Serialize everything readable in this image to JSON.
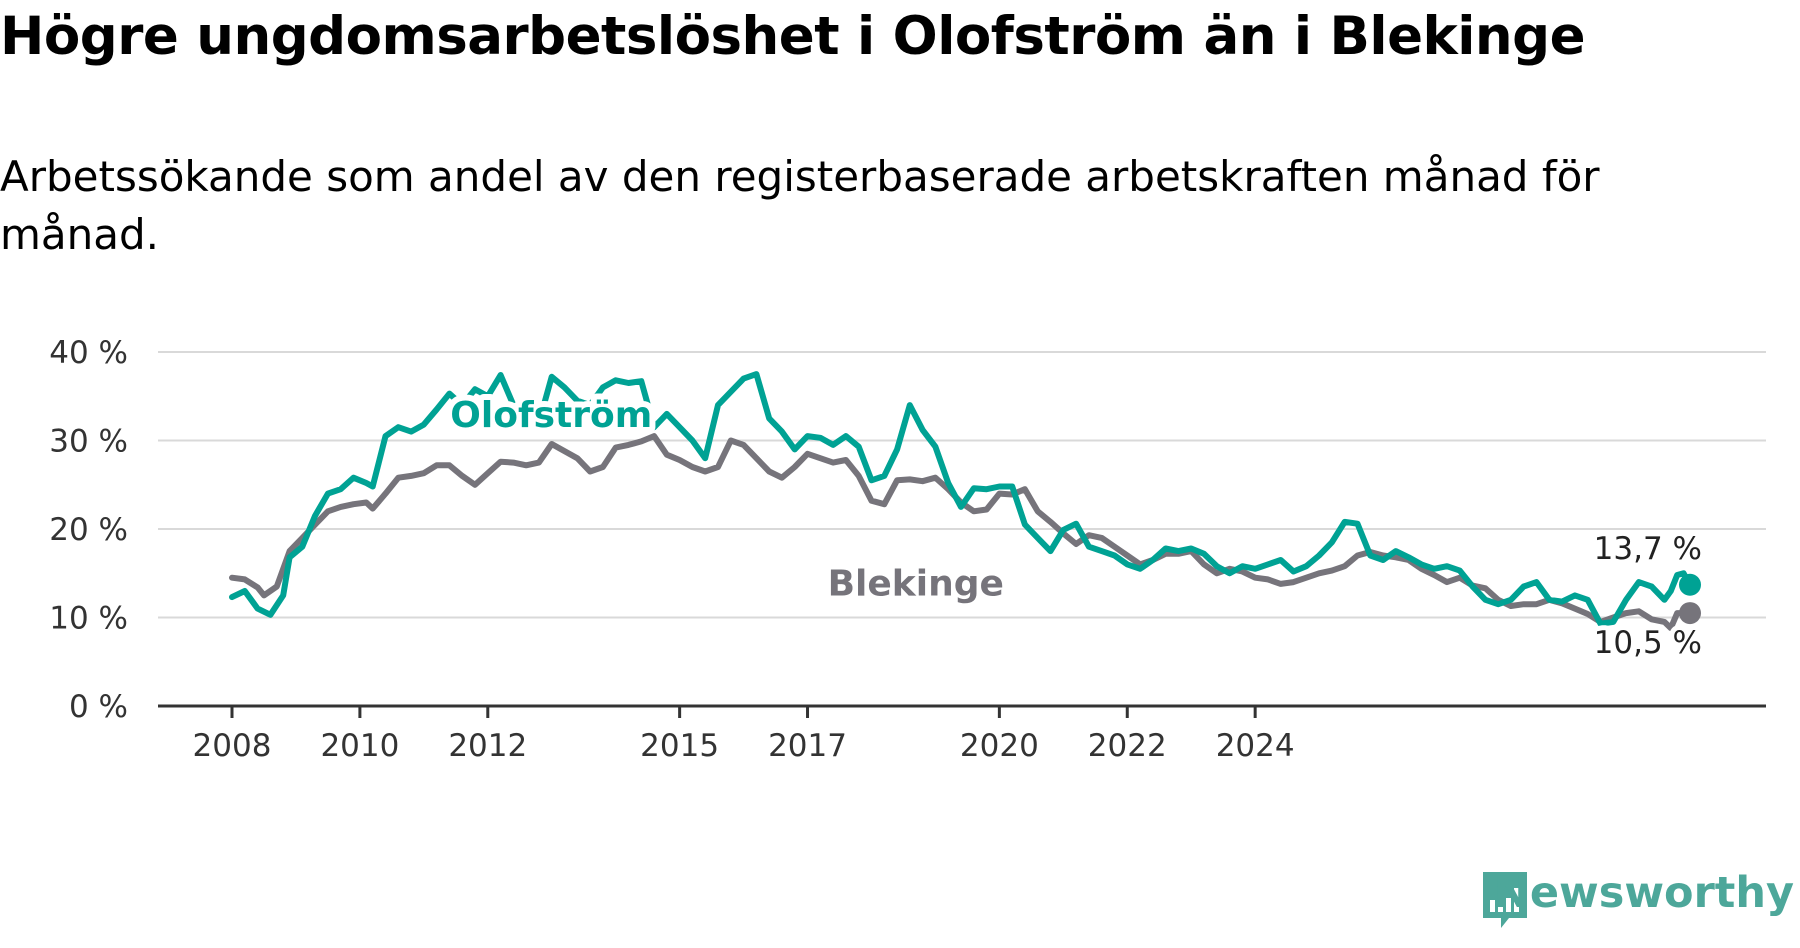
{
  "title": "Högre ungdomsarbetslöshet i Olofström än i Blekinge",
  "subtitle": "Arbetssökande som andel av den registerbaserade arbetskraften månad för månad.",
  "brand": {
    "name": "Newsworthy",
    "color": "#4da79a"
  },
  "chart_data": {
    "type": "line",
    "title": "Högre ungdomsarbetslöshet i Olofström än i Blekinge",
    "subtitle": "Arbetssökande som andel av den registerbaserade arbetskraften månad för månad.",
    "ylim": [
      0,
      40
    ],
    "yticks": [
      0,
      10,
      20,
      30,
      40
    ],
    "ytick_labels": [
      "0 %",
      "10 %",
      "20 %",
      "30 %",
      "40 %"
    ],
    "xlim": [
      2008.0,
      2030.8
    ],
    "xticks": [
      2008,
      2010,
      2012,
      2015,
      2017,
      2020,
      2022,
      2024
    ],
    "xtick_labels": [
      "2008",
      "2010",
      "2012",
      "2015",
      "2017",
      "2020",
      "2022",
      "2024"
    ],
    "grid": true,
    "series": [
      {
        "name": "Blekinge",
        "color": "#76747b",
        "end_label": "10,5 %",
        "points": [
          [
            2008.0,
            14.5
          ],
          [
            2008.2,
            14.3
          ],
          [
            2008.4,
            13.4
          ],
          [
            2008.5,
            12.5
          ],
          [
            2008.7,
            13.5
          ],
          [
            2008.9,
            17.5
          ],
          [
            2009.1,
            19.0
          ],
          [
            2009.3,
            20.5
          ],
          [
            2009.5,
            22.0
          ],
          [
            2009.7,
            22.5
          ],
          [
            2009.9,
            22.8
          ],
          [
            2010.1,
            23.0
          ],
          [
            2010.2,
            22.3
          ],
          [
            2010.4,
            24.0
          ],
          [
            2010.6,
            25.8
          ],
          [
            2010.8,
            26.0
          ],
          [
            2011.0,
            26.3
          ],
          [
            2011.2,
            27.2
          ],
          [
            2011.4,
            27.2
          ],
          [
            2011.6,
            26.0
          ],
          [
            2011.8,
            25.0
          ],
          [
            2012.0,
            26.3
          ],
          [
            2012.2,
            27.6
          ],
          [
            2012.4,
            27.5
          ],
          [
            2012.6,
            27.2
          ],
          [
            2012.8,
            27.5
          ],
          [
            2013.0,
            29.6
          ],
          [
            2013.2,
            28.8
          ],
          [
            2013.4,
            28.0
          ],
          [
            2013.6,
            26.5
          ],
          [
            2013.8,
            27.0
          ],
          [
            2014.0,
            29.2
          ],
          [
            2014.2,
            29.5
          ],
          [
            2014.4,
            29.9
          ],
          [
            2014.6,
            30.5
          ],
          [
            2014.8,
            28.4
          ],
          [
            2015.0,
            27.8
          ],
          [
            2015.2,
            27.0
          ],
          [
            2015.4,
            26.5
          ],
          [
            2015.6,
            27.0
          ],
          [
            2015.8,
            30.0
          ],
          [
            2016.0,
            29.5
          ],
          [
            2016.2,
            28.0
          ],
          [
            2016.4,
            26.5
          ],
          [
            2016.6,
            25.8
          ],
          [
            2016.8,
            27.0
          ],
          [
            2017.0,
            28.5
          ],
          [
            2017.2,
            28.0
          ],
          [
            2017.4,
            27.5
          ],
          [
            2017.6,
            27.8
          ],
          [
            2017.8,
            26.0
          ],
          [
            2018.0,
            23.2
          ],
          [
            2018.2,
            22.8
          ],
          [
            2018.4,
            25.5
          ],
          [
            2018.6,
            25.6
          ],
          [
            2018.8,
            25.4
          ],
          [
            2019.0,
            25.8
          ],
          [
            2019.2,
            24.5
          ],
          [
            2019.4,
            23.0
          ],
          [
            2019.6,
            22.0
          ],
          [
            2019.8,
            22.2
          ],
          [
            2020.0,
            24.0
          ],
          [
            2020.2,
            23.9
          ],
          [
            2020.4,
            24.5
          ],
          [
            2020.6,
            22.0
          ],
          [
            2020.8,
            20.8
          ],
          [
            2021.0,
            19.5
          ],
          [
            2021.2,
            18.3
          ],
          [
            2021.4,
            19.3
          ],
          [
            2021.6,
            19.0
          ],
          [
            2021.8,
            18.0
          ],
          [
            2022.0,
            17.0
          ],
          [
            2022.2,
            16.0
          ],
          [
            2022.4,
            16.5
          ],
          [
            2022.6,
            17.2
          ],
          [
            2022.8,
            17.2
          ],
          [
            2023.0,
            17.5
          ],
          [
            2023.2,
            16.0
          ],
          [
            2023.4,
            15.0
          ],
          [
            2023.6,
            15.5
          ],
          [
            2023.8,
            15.2
          ],
          [
            2024.0,
            14.5
          ],
          [
            2024.2,
            14.3
          ],
          [
            2024.4,
            13.8
          ],
          [
            2024.6,
            14.0
          ],
          [
            2024.8,
            14.5
          ],
          [
            2025.0,
            15.0
          ],
          [
            2025.2,
            15.3
          ],
          [
            2025.4,
            15.8
          ],
          [
            2025.6,
            17.0
          ],
          [
            2025.8,
            17.4
          ],
          [
            2026.0,
            17.0
          ],
          [
            2026.2,
            16.8
          ],
          [
            2026.4,
            16.5
          ],
          [
            2026.6,
            15.5
          ],
          [
            2026.8,
            14.8
          ],
          [
            2027.0,
            14.0
          ],
          [
            2027.2,
            14.5
          ],
          [
            2027.4,
            13.6
          ],
          [
            2027.6,
            13.3
          ],
          [
            2027.8,
            12.0
          ],
          [
            2028.0,
            11.3
          ],
          [
            2028.2,
            11.5
          ],
          [
            2028.4,
            11.5
          ],
          [
            2028.6,
            12.0
          ],
          [
            2028.8,
            11.6
          ],
          [
            2029.0,
            11.0
          ],
          [
            2029.2,
            10.4
          ],
          [
            2029.4,
            9.5
          ],
          [
            2029.6,
            10.0
          ],
          [
            2029.8,
            10.5
          ],
          [
            2030.0,
            10.7
          ],
          [
            2030.2,
            9.8
          ],
          [
            2030.4,
            9.5
          ],
          [
            2030.5,
            8.8
          ],
          [
            2030.6,
            10.5
          ],
          [
            2030.8,
            10.5
          ]
        ]
      },
      {
        "name": "Olofström",
        "color": "#00a294",
        "end_label": "13,7 %",
        "points": [
          [
            2008.0,
            12.3
          ],
          [
            2008.2,
            13.0
          ],
          [
            2008.4,
            11.0
          ],
          [
            2008.6,
            10.3
          ],
          [
            2008.8,
            12.5
          ],
          [
            2008.9,
            16.8
          ],
          [
            2009.1,
            18.0
          ],
          [
            2009.3,
            21.5
          ],
          [
            2009.5,
            24.0
          ],
          [
            2009.7,
            24.5
          ],
          [
            2009.9,
            25.8
          ],
          [
            2010.1,
            25.2
          ],
          [
            2010.2,
            24.8
          ],
          [
            2010.4,
            30.5
          ],
          [
            2010.6,
            31.5
          ],
          [
            2010.8,
            31.0
          ],
          [
            2011.0,
            31.8
          ],
          [
            2011.2,
            33.5
          ],
          [
            2011.4,
            35.3
          ],
          [
            2011.6,
            34.0
          ],
          [
            2011.8,
            35.8
          ],
          [
            2012.0,
            35.0
          ],
          [
            2012.2,
            37.4
          ],
          [
            2012.4,
            34.0
          ],
          [
            2012.6,
            32.6
          ],
          [
            2012.8,
            32.0
          ],
          [
            2013.0,
            37.2
          ],
          [
            2013.2,
            36.0
          ],
          [
            2013.4,
            34.5
          ],
          [
            2013.6,
            34.0
          ],
          [
            2013.8,
            36.0
          ],
          [
            2014.0,
            36.8
          ],
          [
            2014.2,
            36.5
          ],
          [
            2014.4,
            36.7
          ],
          [
            2014.6,
            31.5
          ],
          [
            2014.8,
            33.0
          ],
          [
            2015.0,
            31.5
          ],
          [
            2015.2,
            30.0
          ],
          [
            2015.4,
            28.0
          ],
          [
            2015.6,
            34.0
          ],
          [
            2015.8,
            35.5
          ],
          [
            2016.0,
            37.0
          ],
          [
            2016.2,
            37.5
          ],
          [
            2016.4,
            32.5
          ],
          [
            2016.6,
            31.0
          ],
          [
            2016.8,
            29.0
          ],
          [
            2017.0,
            30.5
          ],
          [
            2017.2,
            30.3
          ],
          [
            2017.4,
            29.5
          ],
          [
            2017.6,
            30.5
          ],
          [
            2017.8,
            29.3
          ],
          [
            2018.0,
            25.5
          ],
          [
            2018.2,
            26.0
          ],
          [
            2018.4,
            29.0
          ],
          [
            2018.6,
            34.0
          ],
          [
            2018.8,
            31.2
          ],
          [
            2019.0,
            29.3
          ],
          [
            2019.2,
            25.2
          ],
          [
            2019.4,
            22.5
          ],
          [
            2019.6,
            24.6
          ],
          [
            2019.8,
            24.5
          ],
          [
            2020.0,
            24.8
          ],
          [
            2020.2,
            24.8
          ],
          [
            2020.4,
            20.5
          ],
          [
            2020.6,
            19.0
          ],
          [
            2020.8,
            17.5
          ],
          [
            2021.0,
            19.9
          ],
          [
            2021.2,
            20.6
          ],
          [
            2021.4,
            18.0
          ],
          [
            2021.6,
            17.5
          ],
          [
            2021.8,
            17.0
          ],
          [
            2022.0,
            16.0
          ],
          [
            2022.2,
            15.5
          ],
          [
            2022.4,
            16.5
          ],
          [
            2022.6,
            17.8
          ],
          [
            2022.8,
            17.5
          ],
          [
            2023.0,
            17.8
          ],
          [
            2023.2,
            17.2
          ],
          [
            2023.4,
            15.8
          ],
          [
            2023.6,
            15.0
          ],
          [
            2023.8,
            15.8
          ],
          [
            2024.0,
            15.5
          ],
          [
            2024.2,
            16.0
          ],
          [
            2024.4,
            16.5
          ],
          [
            2024.6,
            15.2
          ],
          [
            2024.8,
            15.8
          ],
          [
            2025.0,
            17.0
          ],
          [
            2025.2,
            18.5
          ],
          [
            2025.4,
            20.8
          ],
          [
            2025.6,
            20.6
          ],
          [
            2025.8,
            17.0
          ],
          [
            2026.0,
            16.5
          ],
          [
            2026.2,
            17.5
          ],
          [
            2026.4,
            16.8
          ],
          [
            2026.6,
            16.0
          ],
          [
            2026.8,
            15.5
          ],
          [
            2027.0,
            15.8
          ],
          [
            2027.2,
            15.3
          ],
          [
            2027.4,
            13.5
          ],
          [
            2027.6,
            12.0
          ],
          [
            2027.8,
            11.5
          ],
          [
            2028.0,
            12.0
          ],
          [
            2028.2,
            13.5
          ],
          [
            2028.4,
            14.0
          ],
          [
            2028.6,
            12.0
          ],
          [
            2028.8,
            11.8
          ],
          [
            2029.0,
            12.5
          ],
          [
            2029.2,
            12.0
          ],
          [
            2029.4,
            9.3
          ],
          [
            2029.6,
            9.5
          ],
          [
            2029.8,
            12.0
          ],
          [
            2030.0,
            14.0
          ],
          [
            2030.2,
            13.5
          ],
          [
            2030.4,
            12.0
          ],
          [
            2030.5,
            13.0
          ],
          [
            2030.6,
            14.8
          ],
          [
            2030.7,
            15.0
          ],
          [
            2030.8,
            13.7
          ]
        ]
      }
    ]
  }
}
